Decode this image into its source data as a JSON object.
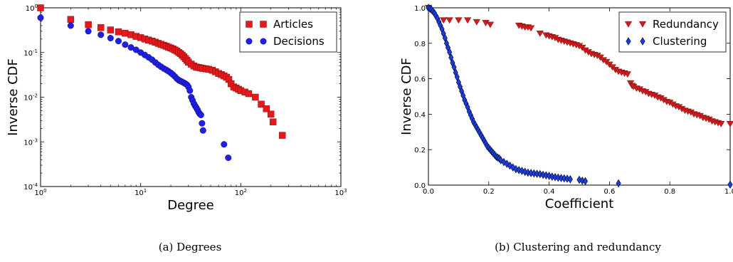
{
  "chart_data": [
    {
      "type": "scatter",
      "caption": "(a) Degrees",
      "xlabel": "Degree",
      "ylabel": "Inverse CDF",
      "xscale": "log",
      "yscale": "log",
      "xlim": [
        1,
        1000
      ],
      "ylim": [
        0.0001,
        1
      ],
      "xticks": [
        1,
        10,
        100,
        1000
      ],
      "xtick_labels": [
        [
          "10",
          "0"
        ],
        [
          "10",
          "1"
        ],
        [
          "10",
          "2"
        ],
        [
          "10",
          "3"
        ]
      ],
      "yticks": [
        0.0001,
        0.001,
        0.01,
        0.1,
        1
      ],
      "ytick_labels": [
        [
          "10",
          "-4"
        ],
        [
          "10",
          "-3"
        ],
        [
          "10",
          "-2"
        ],
        [
          "10",
          "-1"
        ],
        [
          "10",
          "0"
        ]
      ],
      "legend_position": "top-right",
      "series": [
        {
          "name": "Articles",
          "marker": "square",
          "color": "#e31a1c",
          "points": [
            [
              1,
              1.0
            ],
            [
              2,
              0.55
            ],
            [
              3,
              0.42
            ],
            [
              4,
              0.36
            ],
            [
              5,
              0.32
            ],
            [
              6,
              0.29
            ],
            [
              7,
              0.27
            ],
            [
              8,
              0.25
            ],
            [
              9,
              0.23
            ],
            [
              10,
              0.215
            ],
            [
              11,
              0.2
            ],
            [
              12,
              0.19
            ],
            [
              13,
              0.18
            ],
            [
              14,
              0.17
            ],
            [
              15,
              0.16
            ],
            [
              16,
              0.152
            ],
            [
              17,
              0.145
            ],
            [
              18,
              0.138
            ],
            [
              19,
              0.132
            ],
            [
              20,
              0.126
            ],
            [
              21,
              0.12
            ],
            [
              22,
              0.114
            ],
            [
              23,
              0.108
            ],
            [
              24,
              0.1
            ],
            [
              25,
              0.094
            ],
            [
              26,
              0.087
            ],
            [
              27,
              0.08
            ],
            [
              28,
              0.073
            ],
            [
              29,
              0.067
            ],
            [
              30,
              0.061
            ],
            [
              32,
              0.055
            ],
            [
              34,
              0.05
            ],
            [
              36,
              0.047
            ],
            [
              38,
              0.046
            ],
            [
              40,
              0.045
            ],
            [
              42,
              0.044
            ],
            [
              45,
              0.043
            ],
            [
              48,
              0.042
            ],
            [
              52,
              0.04
            ],
            [
              56,
              0.037
            ],
            [
              60,
              0.034
            ],
            [
              64,
              0.032
            ],
            [
              68,
              0.03
            ],
            [
              72,
              0.028
            ],
            [
              76,
              0.025
            ],
            [
              80,
              0.02
            ],
            [
              85,
              0.017
            ],
            [
              90,
              0.016
            ],
            [
              95,
              0.015
            ],
            [
              100,
              0.014
            ],
            [
              110,
              0.013
            ],
            [
              120,
              0.012
            ],
            [
              140,
              0.01
            ],
            [
              160,
              0.007
            ],
            [
              180,
              0.0055
            ],
            [
              200,
              0.0042
            ],
            [
              210,
              0.0028
            ],
            [
              260,
              0.0014
            ]
          ]
        },
        {
          "name": "Decisions",
          "marker": "circle",
          "color": "#1f1fe0",
          "points": [
            [
              1,
              0.6
            ],
            [
              2,
              0.4
            ],
            [
              3,
              0.3
            ],
            [
              4,
              0.25
            ],
            [
              5,
              0.21
            ],
            [
              6,
              0.18
            ],
            [
              7,
              0.15
            ],
            [
              8,
              0.13
            ],
            [
              9,
              0.115
            ],
            [
              10,
              0.1
            ],
            [
              11,
              0.088
            ],
            [
              12,
              0.078
            ],
            [
              13,
              0.069
            ],
            [
              14,
              0.06
            ],
            [
              15,
              0.053
            ],
            [
              16,
              0.048
            ],
            [
              17,
              0.044
            ],
            [
              18,
              0.041
            ],
            [
              19,
              0.038
            ],
            [
              20,
              0.035
            ],
            [
              21,
              0.032
            ],
            [
              22,
              0.029
            ],
            [
              23,
              0.026
            ],
            [
              24,
              0.024
            ],
            [
              25,
              0.023
            ],
            [
              26,
              0.022
            ],
            [
              27,
              0.021
            ],
            [
              28,
              0.02
            ],
            [
              29,
              0.019
            ],
            [
              30,
              0.017
            ],
            [
              31,
              0.014
            ],
            [
              32,
              0.01
            ],
            [
              33,
              0.0085
            ],
            [
              34,
              0.0072
            ],
            [
              35,
              0.0064
            ],
            [
              36,
              0.0058
            ],
            [
              37,
              0.0052
            ],
            [
              38,
              0.0046
            ],
            [
              39,
              0.0042
            ],
            [
              40,
              0.004
            ],
            [
              41,
              0.0026
            ],
            [
              42,
              0.0018
            ],
            [
              68,
              0.00088
            ],
            [
              75,
              0.00044
            ]
          ]
        }
      ]
    },
    {
      "type": "scatter",
      "caption": "(b) Clustering and redundancy",
      "xlabel": "Coefficient",
      "ylabel": "Inverse CDF",
      "xlim": [
        0,
        1
      ],
      "ylim": [
        0,
        1
      ],
      "xticks": [
        0,
        0.2,
        0.4,
        0.6,
        0.8,
        1.0
      ],
      "xtick_labels": [
        "0.0",
        "0.2",
        "0.4",
        "0.6",
        "0.8",
        "1.0"
      ],
      "yticks": [
        0,
        0.2,
        0.4,
        0.6,
        0.8,
        1.0
      ],
      "ytick_labels": [
        "0.0",
        "0.2",
        "0.4",
        "0.6",
        "0.8",
        "1.0"
      ],
      "legend_position": "top-right",
      "series": [
        {
          "name": "Redundancy",
          "marker": "triangle-down",
          "color": "#d01c1c",
          "points": [
            [
              0.0,
              1.0
            ],
            [
              0.05,
              0.93
            ],
            [
              0.07,
              0.93
            ],
            [
              0.1,
              0.93
            ],
            [
              0.13,
              0.93
            ],
            [
              0.16,
              0.92
            ],
            [
              0.19,
              0.915
            ],
            [
              0.205,
              0.905
            ],
            [
              0.3,
              0.9
            ],
            [
              0.31,
              0.895
            ],
            [
              0.32,
              0.89
            ],
            [
              0.33,
              0.89
            ],
            [
              0.34,
              0.885
            ],
            [
              0.37,
              0.855
            ],
            [
              0.39,
              0.845
            ],
            [
              0.4,
              0.84
            ],
            [
              0.41,
              0.835
            ],
            [
              0.42,
              0.83
            ],
            [
              0.43,
              0.82
            ],
            [
              0.44,
              0.815
            ],
            [
              0.45,
              0.81
            ],
            [
              0.46,
              0.805
            ],
            [
              0.47,
              0.8
            ],
            [
              0.48,
              0.795
            ],
            [
              0.49,
              0.79
            ],
            [
              0.5,
              0.785
            ],
            [
              0.51,
              0.775
            ],
            [
              0.52,
              0.76
            ],
            [
              0.53,
              0.75
            ],
            [
              0.54,
              0.74
            ],
            [
              0.55,
              0.735
            ],
            [
              0.56,
              0.73
            ],
            [
              0.57,
              0.72
            ],
            [
              0.58,
              0.705
            ],
            [
              0.59,
              0.695
            ],
            [
              0.6,
              0.68
            ],
            [
              0.61,
              0.665
            ],
            [
              0.62,
              0.65
            ],
            [
              0.63,
              0.64
            ],
            [
              0.64,
              0.635
            ],
            [
              0.65,
              0.63
            ],
            [
              0.66,
              0.625
            ],
            [
              0.67,
              0.575
            ],
            [
              0.675,
              0.56
            ],
            [
              0.68,
              0.555
            ],
            [
              0.69,
              0.545
            ],
            [
              0.7,
              0.54
            ],
            [
              0.71,
              0.53
            ],
            [
              0.72,
              0.525
            ],
            [
              0.73,
              0.515
            ],
            [
              0.74,
              0.51
            ],
            [
              0.75,
              0.505
            ],
            [
              0.76,
              0.495
            ],
            [
              0.77,
              0.49
            ],
            [
              0.78,
              0.48
            ],
            [
              0.79,
              0.47
            ],
            [
              0.8,
              0.465
            ],
            [
              0.81,
              0.455
            ],
            [
              0.82,
              0.445
            ],
            [
              0.83,
              0.44
            ],
            [
              0.84,
              0.43
            ],
            [
              0.85,
              0.42
            ],
            [
              0.86,
              0.415
            ],
            [
              0.87,
              0.41
            ],
            [
              0.88,
              0.4
            ],
            [
              0.89,
              0.395
            ],
            [
              0.9,
              0.39
            ],
            [
              0.91,
              0.38
            ],
            [
              0.92,
              0.375
            ],
            [
              0.93,
              0.37
            ],
            [
              0.94,
              0.36
            ],
            [
              0.95,
              0.355
            ],
            [
              0.96,
              0.35
            ],
            [
              0.97,
              0.345
            ],
            [
              1.0,
              0.345
            ]
          ]
        },
        {
          "name": "Clustering",
          "marker": "diamond",
          "color": "#1a3fd8",
          "points": [
            [
              0.0,
              1.0
            ],
            [
              0.005,
              0.995
            ],
            [
              0.01,
              0.99
            ],
            [
              0.015,
              0.98
            ],
            [
              0.02,
              0.97
            ],
            [
              0.025,
              0.955
            ],
            [
              0.03,
              0.94
            ],
            [
              0.035,
              0.92
            ],
            [
              0.04,
              0.9
            ],
            [
              0.045,
              0.88
            ],
            [
              0.05,
              0.855
            ],
            [
              0.055,
              0.83
            ],
            [
              0.06,
              0.8
            ],
            [
              0.065,
              0.775
            ],
            [
              0.07,
              0.75
            ],
            [
              0.075,
              0.72
            ],
            [
              0.08,
              0.69
            ],
            [
              0.085,
              0.665
            ],
            [
              0.09,
              0.635
            ],
            [
              0.095,
              0.61
            ],
            [
              0.1,
              0.58
            ],
            [
              0.105,
              0.555
            ],
            [
              0.11,
              0.53
            ],
            [
              0.115,
              0.505
            ],
            [
              0.12,
              0.48
            ],
            [
              0.125,
              0.46
            ],
            [
              0.13,
              0.44
            ],
            [
              0.135,
              0.415
            ],
            [
              0.14,
              0.395
            ],
            [
              0.145,
              0.375
            ],
            [
              0.15,
              0.355
            ],
            [
              0.155,
              0.34
            ],
            [
              0.16,
              0.325
            ],
            [
              0.165,
              0.31
            ],
            [
              0.17,
              0.295
            ],
            [
              0.175,
              0.28
            ],
            [
              0.18,
              0.265
            ],
            [
              0.185,
              0.25
            ],
            [
              0.19,
              0.235
            ],
            [
              0.195,
              0.22
            ],
            [
              0.2,
              0.21
            ],
            [
              0.205,
              0.2
            ],
            [
              0.21,
              0.19
            ],
            [
              0.215,
              0.18
            ],
            [
              0.22,
              0.17
            ],
            [
              0.225,
              0.16
            ],
            [
              0.23,
              0.155
            ],
            [
              0.235,
              0.15
            ],
            [
              0.24,
              0.14
            ],
            [
              0.25,
              0.13
            ],
            [
              0.26,
              0.12
            ],
            [
              0.27,
              0.11
            ],
            [
              0.28,
              0.1
            ],
            [
              0.29,
              0.09
            ],
            [
              0.3,
              0.085
            ],
            [
              0.31,
              0.08
            ],
            [
              0.32,
              0.075
            ],
            [
              0.33,
              0.07
            ],
            [
              0.34,
              0.068
            ],
            [
              0.35,
              0.066
            ],
            [
              0.36,
              0.064
            ],
            [
              0.37,
              0.062
            ],
            [
              0.38,
              0.058
            ],
            [
              0.39,
              0.055
            ],
            [
              0.4,
              0.052
            ],
            [
              0.41,
              0.048
            ],
            [
              0.42,
              0.045
            ],
            [
              0.43,
              0.042
            ],
            [
              0.44,
              0.04
            ],
            [
              0.45,
              0.038
            ],
            [
              0.46,
              0.036
            ],
            [
              0.47,
              0.033
            ],
            [
              0.5,
              0.03
            ],
            [
              0.51,
              0.025
            ],
            [
              0.52,
              0.022
            ],
            [
              0.63,
              0.01
            ],
            [
              1.0,
              0.003
            ]
          ]
        }
      ]
    }
  ]
}
